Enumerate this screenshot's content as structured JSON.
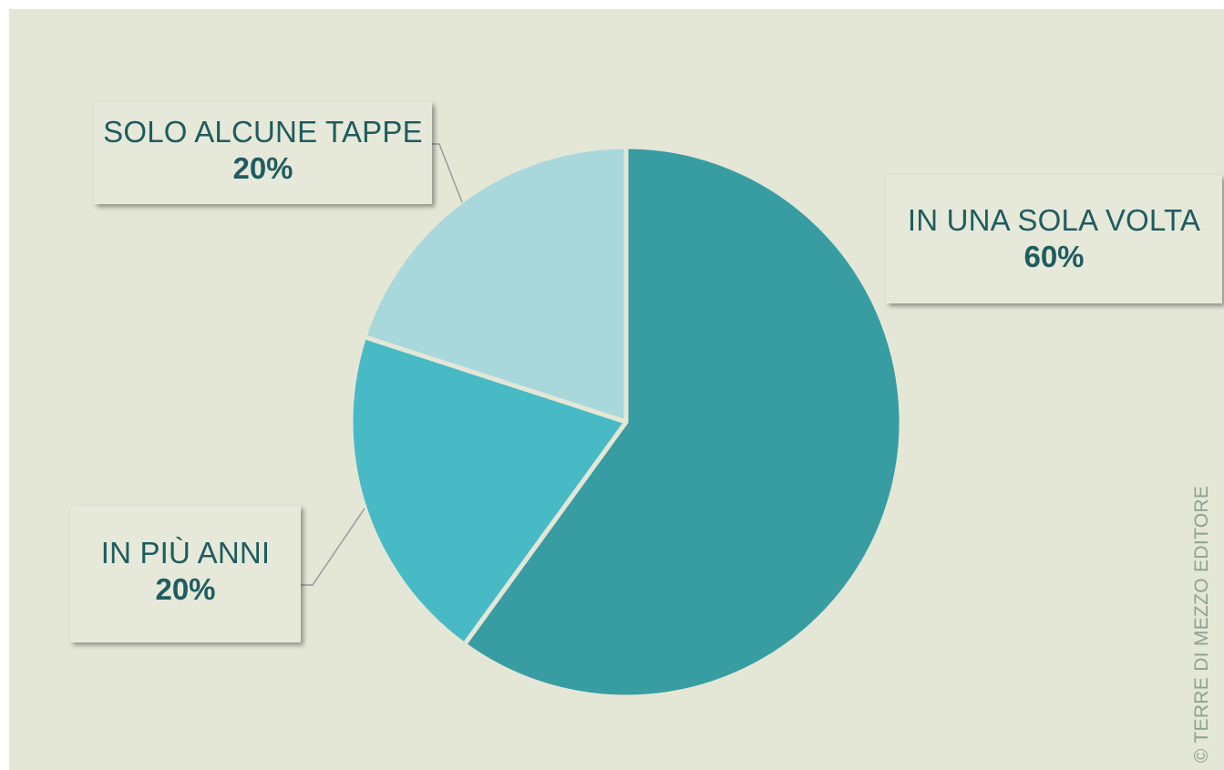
{
  "chart_data": {
    "type": "pie",
    "title": "",
    "slices": [
      {
        "label": "IN UNA SOLA VOLTA",
        "value": 60,
        "value_label": "60%",
        "color": "#389ca3"
      },
      {
        "label": "IN PIÙ ANNI",
        "value": 20,
        "value_label": "20%",
        "color": "#47bac6"
      },
      {
        "label": "SOLO ALCUNE TAPPE",
        "value": 20,
        "value_label": "20%",
        "color": "#a8d8dc"
      }
    ],
    "start_angle_deg": 0,
    "direction": "clockwise",
    "separator_color": "#e4e7d6",
    "legend": "none"
  },
  "colors": {
    "background": "#e4e7d6",
    "callout_background": "#e6e9d9",
    "label_text": "#1f5c5f",
    "leader_line": "#9a9a9a",
    "watermark": "#8ea28f"
  },
  "watermark": "© TERRE DI MEZZO EDITORE"
}
